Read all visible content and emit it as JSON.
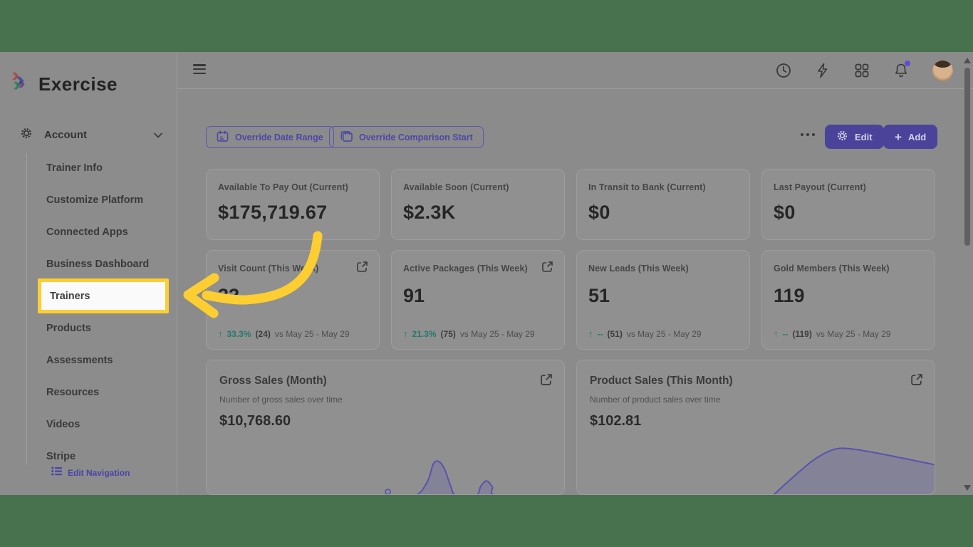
{
  "colors": {
    "frame_green": "#48714e",
    "accent_purple": "#4b4399",
    "highlight_yellow": "#fcce32",
    "positive_teal": "#26786a",
    "chart_line_purple": "#5a52ae",
    "notification_dot": "#5b4fd6"
  },
  "sidebar": {
    "logo_text": "Exercise",
    "account_label": "Account",
    "items": [
      {
        "label": "Trainer Info"
      },
      {
        "label": "Customize Platform"
      },
      {
        "label": "Connected Apps"
      },
      {
        "label": "Business Dashboard"
      },
      {
        "label": "Trainers",
        "highlighted": true
      },
      {
        "label": "Products"
      },
      {
        "label": "Assessments"
      },
      {
        "label": "Resources"
      },
      {
        "label": "Videos"
      },
      {
        "label": "Stripe"
      }
    ],
    "edit_navigation_label": "Edit Navigation"
  },
  "toolbar": {
    "override_date_range_label": "Override Date Range",
    "override_comparison_start_label": "Override Comparison Start",
    "edit_label": "Edit",
    "add_label": "Add"
  },
  "stat_cards": [
    {
      "title": "Available To Pay Out (Current)",
      "value": "$175,719.67"
    },
    {
      "title": "Available Soon (Current)",
      "value": "$2.3K"
    },
    {
      "title": "In Transit to Bank (Current)",
      "value": "$0"
    },
    {
      "title": "Last Payout (Current)",
      "value": "$0"
    }
  ],
  "week_cards": [
    {
      "title": "Visit Count (This Week)",
      "value": "32",
      "delta_arrow": "↑",
      "delta_pct": "33.3%",
      "delta_count": "(24)",
      "comparison": "vs May 25 - May 29"
    },
    {
      "title": "Active Packages (This Week)",
      "value": "91",
      "delta_arrow": "↑",
      "delta_pct": "21.3%",
      "delta_count": "(75)",
      "comparison": "vs May 25 - May 29"
    },
    {
      "title": "New Leads (This Week)",
      "value": "51",
      "delta_arrow": "↑",
      "delta_pct": "--",
      "delta_count": "(51)",
      "comparison": "vs May 25 - May 29"
    },
    {
      "title": "Gold Members (This Week)",
      "value": "119",
      "delta_arrow": "↑",
      "delta_pct": "--",
      "delta_count": "(119)",
      "comparison": "vs May 25 - May 29"
    }
  ],
  "chart_cards": [
    {
      "title": "Gross Sales (Month)",
      "subtitle": "Number of gross sales over time",
      "value": "$10,768.60",
      "type": "area",
      "points": [
        [
          0,
          1
        ],
        [
          0.5,
          1
        ],
        [
          0.58,
          1
        ],
        [
          0.615,
          0.78
        ],
        [
          0.632,
          0.5
        ],
        [
          0.648,
          0.47
        ],
        [
          0.664,
          0.6
        ],
        [
          0.68,
          0.85
        ],
        [
          0.695,
          1
        ],
        [
          0.75,
          1
        ],
        [
          0.764,
          0.85
        ],
        [
          0.78,
          0.77
        ],
        [
          0.796,
          0.86
        ],
        [
          0.812,
          1
        ],
        [
          1,
          1
        ]
      ],
      "marker": [
        0.505,
        0.94
      ]
    },
    {
      "title": "Product Sales (This Month)",
      "subtitle": "Number of product sales over time",
      "value": "$102.81",
      "type": "area",
      "points": [
        [
          0.545,
          1
        ],
        [
          0.6,
          0.72
        ],
        [
          0.655,
          0.46
        ],
        [
          0.7,
          0.31
        ],
        [
          0.735,
          0.26
        ],
        [
          0.78,
          0.28
        ],
        [
          0.85,
          0.35
        ],
        [
          0.93,
          0.44
        ],
        [
          1,
          0.52
        ]
      ]
    }
  ]
}
